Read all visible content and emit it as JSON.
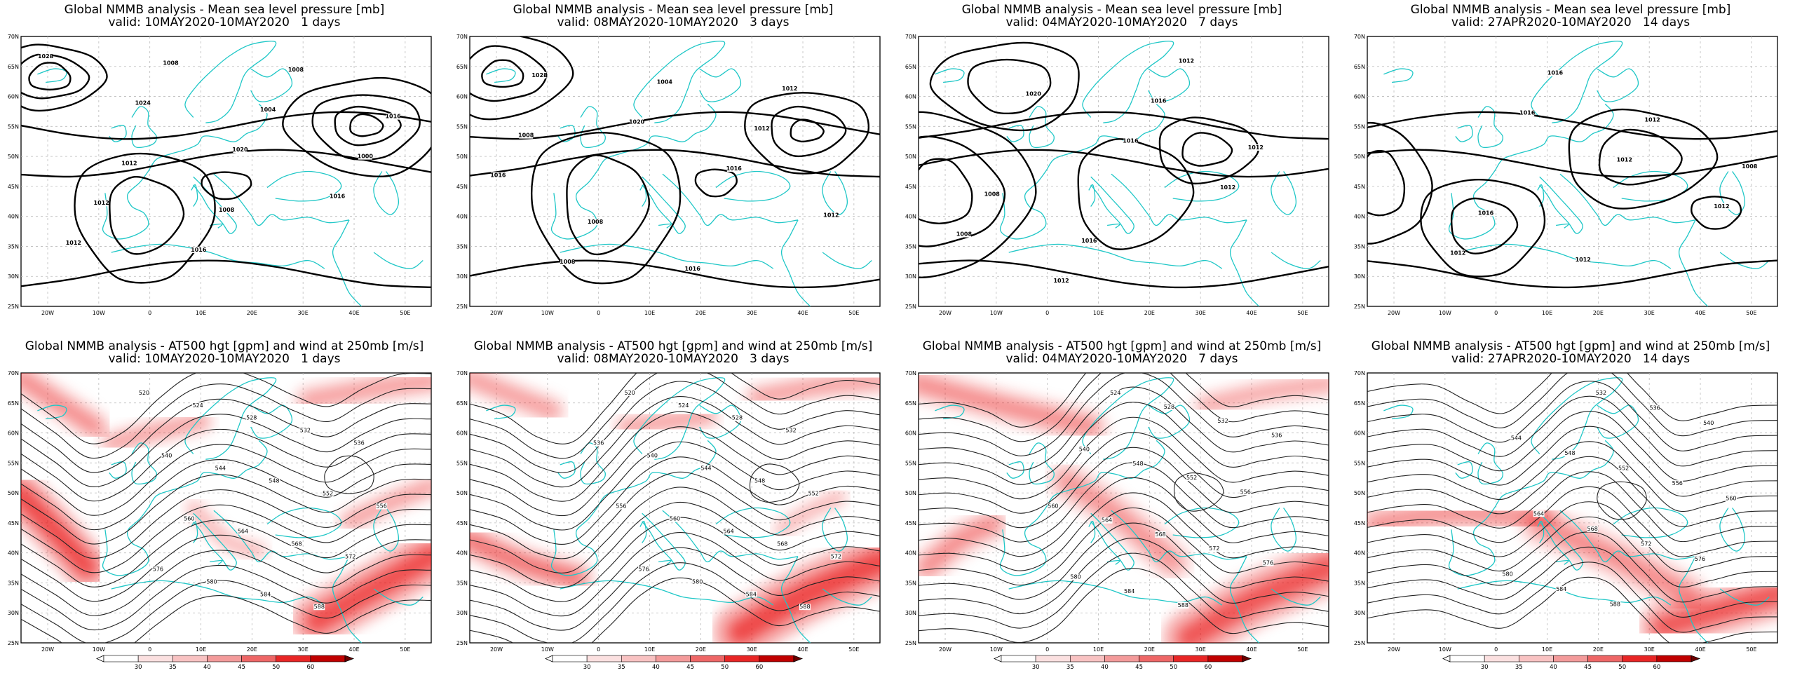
{
  "axes": {
    "lat_labels": [
      "25N",
      "30N",
      "35N",
      "40N",
      "45N",
      "50N",
      "55N",
      "60N",
      "65N",
      "70N"
    ],
    "lon_labels": [
      "20W",
      "10W",
      "0",
      "10E",
      "20E",
      "30E",
      "40E",
      "50E"
    ]
  },
  "colors": {
    "coast": "#1fc7c7",
    "wind": "#e8000b",
    "contour": "#000000"
  },
  "colorbar_labels": [
    "30",
    "35",
    "40",
    "45",
    "50",
    "60"
  ],
  "rows": [
    {
      "title": "Global NMMB analysis - Mean sea level pressure [mb]",
      "panels": [
        {
          "period": "valid: 10MAY2020-10MAY2020   1 days",
          "isobar_labels": [
            "1028",
            "1024",
            "1020",
            "1016",
            "1012",
            "1008",
            "1004",
            "1000",
            "1012",
            "1016",
            "1008",
            "1016",
            "1012",
            "1008"
          ]
        },
        {
          "period": "valid: 08MAY2020-10MAY2020   3 days",
          "isobar_labels": [
            "1028",
            "1020",
            "1016",
            "1012",
            "1008",
            "1004",
            "1012",
            "1016",
            "1008",
            "1016",
            "1012",
            "1008"
          ]
        },
        {
          "period": "valid: 04MAY2020-10MAY2020   7 days",
          "isobar_labels": [
            "1020",
            "1016",
            "1012",
            "1008",
            "1012",
            "1016",
            "1012",
            "1008",
            "1016",
            "1012"
          ]
        },
        {
          "period": "valid: 27APR2020-10MAY2020   14 days",
          "isobar_labels": [
            "1016",
            "1012",
            "1012",
            "1012",
            "1016",
            "1012",
            "1008",
            "1016",
            "1012"
          ]
        }
      ]
    },
    {
      "title": "Global NMMB analysis - AT500 hgt [gpm] and wind at 250mb [m/s]",
      "panels": [
        {
          "period": "valid: 10MAY2020-10MAY2020   1 days",
          "height_labels": [
            "520",
            "524",
            "528",
            "532",
            "536",
            "540",
            "544",
            "548",
            "552",
            "556",
            "560",
            "564",
            "568",
            "572",
            "576",
            "580",
            "584",
            "588"
          ]
        },
        {
          "period": "valid: 08MAY2020-10MAY2020   3 days",
          "height_labels": [
            "520",
            "524",
            "528",
            "532",
            "536",
            "540",
            "544",
            "548",
            "552",
            "556",
            "560",
            "564",
            "568",
            "572",
            "576",
            "580",
            "584",
            "588"
          ]
        },
        {
          "period": "valid: 04MAY2020-10MAY2020   7 days",
          "height_labels": [
            "524",
            "528",
            "532",
            "536",
            "540",
            "548",
            "552",
            "556",
            "560",
            "564",
            "568",
            "572",
            "576",
            "580",
            "584",
            "588"
          ]
        },
        {
          "period": "valid: 27APR2020-10MAY2020   14 days",
          "height_labels": [
            "532",
            "536",
            "540",
            "544",
            "548",
            "552",
            "556",
            "560",
            "564",
            "568",
            "572",
            "576",
            "580",
            "584",
            "588"
          ]
        }
      ]
    }
  ]
}
